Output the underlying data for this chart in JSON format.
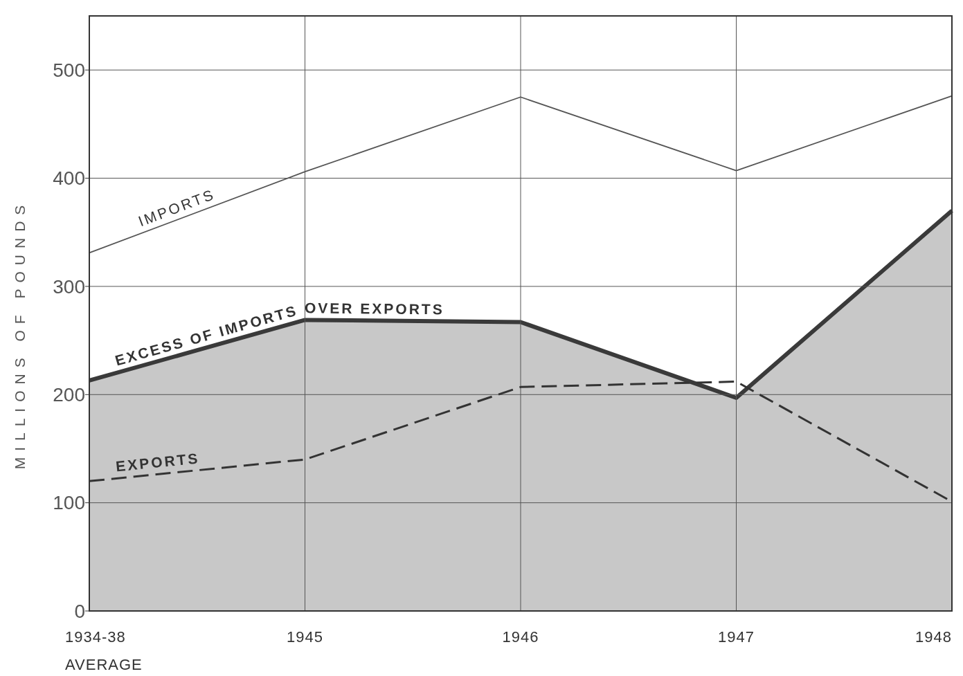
{
  "chart_data": {
    "type": "line",
    "ylabel": "MILLIONS OF POUNDS",
    "categories": [
      "1934-38\nAVERAGE",
      "1945",
      "1946",
      "1947",
      "1948"
    ],
    "series": [
      {
        "name": "IMPORTS",
        "color": "#555555",
        "values": [
          331,
          406,
          475,
          407,
          476
        ]
      },
      {
        "name": "EXCESS OF IMPORTS OVER EXPORTS",
        "type": "area",
        "color": "#c8c8c8",
        "values": [
          213,
          269,
          267,
          197,
          370
        ]
      },
      {
        "name": "EXPORTS",
        "color": "#333333",
        "line_style": "dashed",
        "values": [
          120,
          140,
          207,
          212,
          101
        ]
      }
    ],
    "ylim": [
      0,
      550
    ],
    "yticks": [
      0,
      100,
      200,
      300,
      400,
      500
    ],
    "grid": true
  }
}
